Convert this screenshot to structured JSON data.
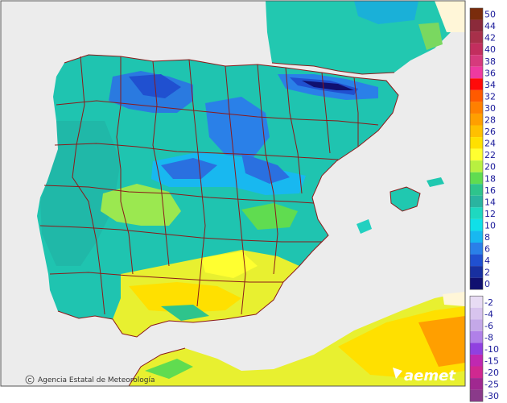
{
  "credit": "Agencia Estatal de Meteorología",
  "logo_text": "aemet",
  "copyright_symbol": "C",
  "colors": {
    "sea": "#ececec",
    "border": "#8b1a1a",
    "frame": "#555555"
  },
  "legend": [
    {
      "label": "50",
      "color": "#7a2c0c"
    },
    {
      "label": "44",
      "color": "#8b2a3a"
    },
    {
      "label": "42",
      "color": "#a8304a"
    },
    {
      "label": "40",
      "color": "#c22e5e"
    },
    {
      "label": "38",
      "color": "#d63a7c"
    },
    {
      "label": "36",
      "color": "#ee3aa0"
    },
    {
      "label": "34",
      "color": "#ff0a0a"
    },
    {
      "label": "32",
      "color": "#ff5a00"
    },
    {
      "label": "30",
      "color": "#ff8000"
    },
    {
      "label": "28",
      "color": "#ff9f00"
    },
    {
      "label": "26",
      "color": "#ffc000"
    },
    {
      "label": "24",
      "color": "#ffe000"
    },
    {
      "label": "22",
      "color": "#ffff30"
    },
    {
      "label": "20",
      "color": "#b8f040"
    },
    {
      "label": "18",
      "color": "#60dc50"
    },
    {
      "label": "16",
      "color": "#2ec48c"
    },
    {
      "label": "14",
      "color": "#2ab4a0"
    },
    {
      "label": "12",
      "color": "#1ed8c0"
    },
    {
      "label": "10",
      "color": "#10e0e8"
    },
    {
      "label": "8",
      "color": "#18b8f0"
    },
    {
      "label": "6",
      "color": "#2a80e8"
    },
    {
      "label": "4",
      "color": "#2050d0"
    },
    {
      "label": "2",
      "color": "#1830a0"
    },
    {
      "label": "0",
      "color": "#101070"
    },
    {
      "label": "-2",
      "color": "#e8dcf4"
    },
    {
      "label": "-4",
      "color": "#d8c4ee"
    },
    {
      "label": "-6",
      "color": "#c4a8e8"
    },
    {
      "label": "-8",
      "color": "#b080e8"
    },
    {
      "label": "-10",
      "color": "#9040e0"
    },
    {
      "label": "-15",
      "color": "#c028b0"
    },
    {
      "label": "-20",
      "color": "#d02890"
    },
    {
      "label": "-25",
      "color": "#a02890"
    },
    {
      "label": "-30",
      "color": "#8a3a8a"
    }
  ]
}
